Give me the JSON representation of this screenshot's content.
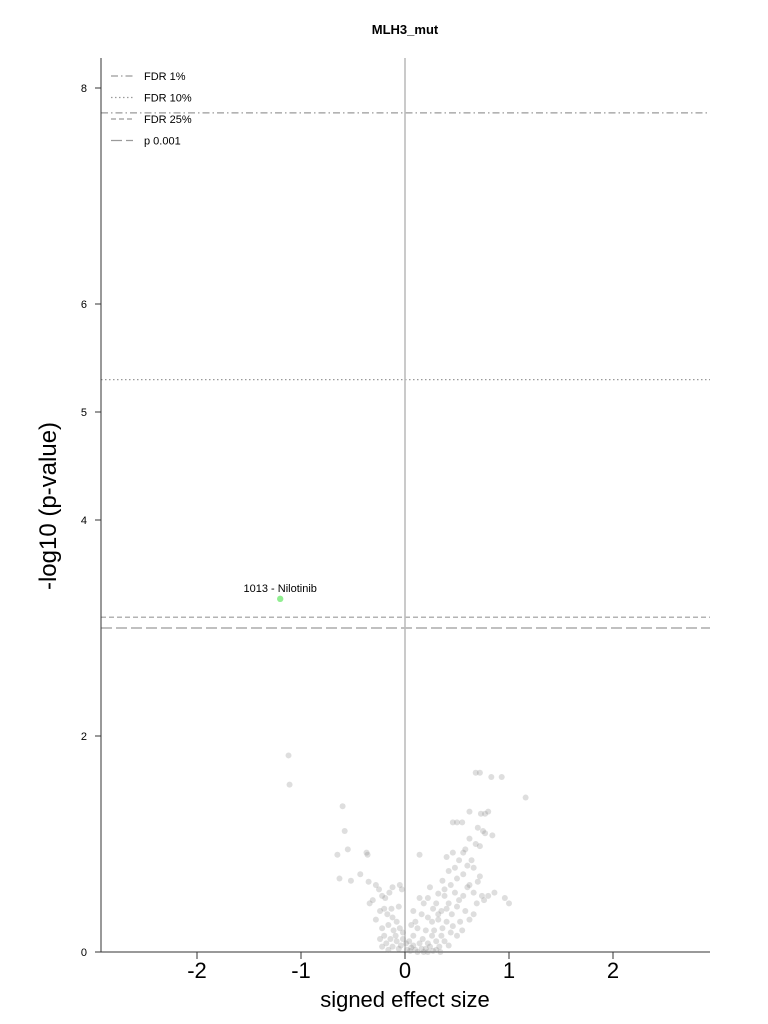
{
  "chart_data": {
    "type": "scatter",
    "title": "MLH3_mut",
    "xlabel": "signed effect size",
    "ylabel": "-log10 (p-value)",
    "xlim": [
      -2,
      2
    ],
    "ylim": [
      0,
      8.3
    ],
    "x_ticks": [
      "-2",
      "-1",
      "0",
      "1",
      "2"
    ],
    "y_ticks": [
      "0",
      "2",
      "4",
      "5",
      "6",
      "8"
    ],
    "grid": false,
    "legend_position": "top-left",
    "thresholds": [
      {
        "name": "FDR 1%",
        "y": 7.77,
        "dash": "7,3,1.5,3",
        "color": "#9a9a9a"
      },
      {
        "name": "FDR 10%",
        "y": 5.3,
        "dash": "1.5,2.5",
        "color": "#9a9a9a"
      },
      {
        "name": "FDR 25%",
        "y": 3.1,
        "dash": "5,3",
        "color": "#9a9a9a"
      },
      {
        "name": "p 0.001",
        "y": 3.0,
        "dash": "11,4",
        "color": "#9a9a9a"
      }
    ],
    "highlight": {
      "label": "1013 - Nilotinib",
      "x": -1.2,
      "y": 3.27,
      "color": "#90ee90"
    },
    "points": [
      [
        -1.12,
        1.82
      ],
      [
        -1.11,
        1.55
      ],
      [
        -0.6,
        1.35
      ],
      [
        -0.58,
        1.12
      ],
      [
        -0.55,
        0.95
      ],
      [
        -0.65,
        0.9
      ],
      [
        -0.63,
        0.68
      ],
      [
        -0.52,
        0.66
      ],
      [
        -0.37,
        0.92
      ],
      [
        -0.36,
        0.9
      ],
      [
        -0.43,
        0.72
      ],
      [
        -0.35,
        0.65
      ],
      [
        -0.28,
        0.62
      ],
      [
        -0.25,
        0.58
      ],
      [
        -0.22,
        0.52
      ],
      [
        -0.19,
        0.5
      ],
      [
        -0.31,
        0.48
      ],
      [
        -0.34,
        0.45
      ],
      [
        -0.15,
        0.55
      ],
      [
        -0.12,
        0.6
      ],
      [
        -0.05,
        0.62
      ],
      [
        -0.03,
        0.58
      ],
      [
        -0.2,
        0.4
      ],
      [
        -0.24,
        0.38
      ],
      [
        -0.17,
        0.35
      ],
      [
        -0.12,
        0.32
      ],
      [
        -0.28,
        0.3
      ],
      [
        -0.08,
        0.28
      ],
      [
        -0.16,
        0.25
      ],
      [
        -0.05,
        0.22
      ],
      [
        -0.22,
        0.22
      ],
      [
        -0.11,
        0.2
      ],
      [
        -0.02,
        0.18
      ],
      [
        -0.2,
        0.15
      ],
      [
        -0.14,
        0.12
      ],
      [
        -0.08,
        0.1
      ],
      [
        -0.18,
        0.08
      ],
      [
        -0.04,
        0.06
      ],
      [
        -0.12,
        0.05
      ],
      [
        -0.06,
        0.03
      ],
      [
        -0.22,
        0.05
      ],
      [
        -0.16,
        0.02
      ],
      [
        -0.02,
        0.12
      ],
      [
        -0.09,
        0.15
      ],
      [
        -0.24,
        0.12
      ],
      [
        -0.13,
        0.4
      ],
      [
        -0.06,
        0.42
      ],
      [
        0.68,
        1.66
      ],
      [
        0.72,
        1.66
      ],
      [
        0.83,
        1.62
      ],
      [
        0.93,
        1.62
      ],
      [
        1.16,
        1.43
      ],
      [
        0.62,
        1.3
      ],
      [
        0.73,
        1.28
      ],
      [
        0.77,
        1.28
      ],
      [
        0.8,
        1.3
      ],
      [
        0.5,
        1.2
      ],
      [
        0.55,
        1.2
      ],
      [
        0.7,
        1.15
      ],
      [
        0.75,
        1.12
      ],
      [
        0.62,
        1.05
      ],
      [
        0.77,
        1.1
      ],
      [
        0.84,
        1.08
      ],
      [
        0.68,
        1.0
      ],
      [
        0.72,
        0.98
      ],
      [
        0.58,
        0.95
      ],
      [
        0.46,
        0.92
      ],
      [
        0.52,
        0.85
      ],
      [
        0.4,
        0.88
      ],
      [
        0.14,
        0.9
      ],
      [
        0.6,
        0.8
      ],
      [
        0.66,
        0.78
      ],
      [
        0.56,
        0.72
      ],
      [
        0.72,
        0.7
      ],
      [
        0.7,
        0.65
      ],
      [
        0.62,
        0.62
      ],
      [
        0.5,
        0.68
      ],
      [
        0.44,
        0.62
      ],
      [
        0.36,
        0.66
      ],
      [
        0.38,
        0.58
      ],
      [
        0.32,
        0.54
      ],
      [
        0.48,
        0.55
      ],
      [
        0.56,
        0.52
      ],
      [
        0.66,
        0.55
      ],
      [
        0.74,
        0.52
      ],
      [
        0.8,
        0.52
      ],
      [
        0.86,
        0.55
      ],
      [
        0.76,
        0.48
      ],
      [
        0.69,
        0.45
      ],
      [
        0.52,
        0.48
      ],
      [
        0.42,
        0.45
      ],
      [
        0.3,
        0.45
      ],
      [
        0.22,
        0.5
      ],
      [
        0.27,
        0.4
      ],
      [
        0.35,
        0.38
      ],
      [
        0.45,
        0.35
      ],
      [
        0.58,
        0.38
      ],
      [
        0.96,
        0.5
      ],
      [
        1.0,
        0.45
      ],
      [
        0.62,
        0.3
      ],
      [
        0.53,
        0.28
      ],
      [
        0.4,
        0.28
      ],
      [
        0.32,
        0.3
      ],
      [
        0.22,
        0.32
      ],
      [
        0.16,
        0.35
      ],
      [
        0.1,
        0.28
      ],
      [
        0.06,
        0.25
      ],
      [
        0.12,
        0.22
      ],
      [
        0.2,
        0.2
      ],
      [
        0.28,
        0.2
      ],
      [
        0.36,
        0.22
      ],
      [
        0.44,
        0.18
      ],
      [
        0.5,
        0.15
      ],
      [
        0.26,
        0.15
      ],
      [
        0.17,
        0.12
      ],
      [
        0.08,
        0.15
      ],
      [
        0.04,
        0.1
      ],
      [
        0.14,
        0.08
      ],
      [
        0.22,
        0.08
      ],
      [
        0.3,
        0.1
      ],
      [
        0.38,
        0.1
      ],
      [
        0.24,
        0.05
      ],
      [
        0.06,
        0.04
      ],
      [
        0.16,
        0.03
      ],
      [
        0.3,
        0.02
      ],
      [
        0.02,
        0.02
      ],
      [
        0.1,
        0.02
      ],
      [
        0.2,
        0.03
      ],
      [
        0.33,
        0.05
      ],
      [
        0.42,
        0.06
      ],
      [
        0.27,
        0.01
      ],
      [
        0.12,
        0.0
      ],
      [
        0.05,
        0.01
      ],
      [
        0.34,
        0.0
      ],
      [
        0.18,
        0.0
      ],
      [
        0.22,
        0.0
      ],
      [
        0.08,
        0.06
      ],
      [
        0.01,
        0.08
      ],
      [
        0.35,
        0.15
      ],
      [
        0.46,
        0.24
      ],
      [
        0.55,
        0.2
      ],
      [
        0.4,
        0.4
      ],
      [
        0.5,
        0.42
      ],
      [
        0.66,
        0.35
      ],
      [
        0.6,
        0.6
      ],
      [
        0.42,
        0.75
      ],
      [
        0.48,
        0.78
      ],
      [
        0.38,
        0.52
      ],
      [
        0.26,
        0.28
      ],
      [
        0.32,
        0.35
      ],
      [
        0.18,
        0.45
      ],
      [
        0.08,
        0.38
      ],
      [
        0.14,
        0.5
      ],
      [
        0.24,
        0.6
      ],
      [
        0.56,
        0.92
      ],
      [
        0.64,
        0.85
      ],
      [
        0.46,
        1.2
      ]
    ]
  }
}
